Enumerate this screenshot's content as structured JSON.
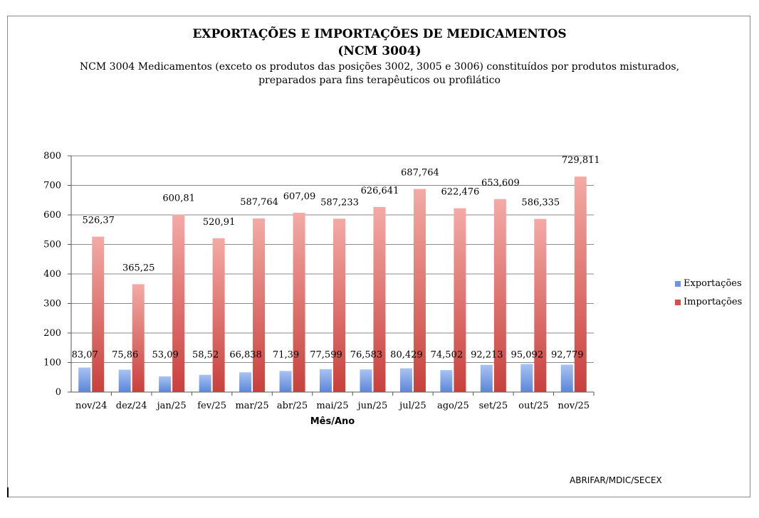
{
  "chart_data": {
    "type": "bar",
    "title": "EXPORTAÇÕES E IMPORTAÇÕES DE MEDICAMENTOS",
    "title_line2": "(NCM 3004)",
    "subtitle": "NCM 3004 Medicamentos (exceto os produtos das posições 3002, 3005 e 3006) constituídos por produtos misturados,",
    "subtitle_line2": "preparados para fins terapêuticos ou profilático",
    "xlabel": "Mês/Ano",
    "ylabel": "",
    "ylim": [
      0,
      800
    ],
    "yticks": [
      "0",
      "100",
      "200",
      "300",
      "400",
      "500",
      "600",
      "700",
      "800"
    ],
    "categories": [
      "nov/24",
      "dez/24",
      "jan/25",
      "fev/25",
      "mar/25",
      "abr/25",
      "mai/25",
      "jun/25",
      "jul/25",
      "ago/25",
      "set/25",
      "out/25",
      "nov/25"
    ],
    "series": [
      {
        "name": "Exportações",
        "color": "#6f95e0",
        "values": [
          83.07,
          75.86,
          53.09,
          58.52,
          66.838,
          71.39,
          77.599,
          76.583,
          80.429,
          74.502,
          92.213,
          95.092,
          92.779
        ],
        "labels": [
          "83,07",
          "75,86",
          "53,09",
          "58,52",
          "66,838",
          "71,39",
          "77,599",
          "76,583",
          "80,429",
          "74,502",
          "92,213",
          "95,092",
          "92,779"
        ]
      },
      {
        "name": "Importações",
        "color": "#d2504b",
        "values": [
          526.37,
          365.25,
          600.81,
          520.91,
          587.764,
          607.09,
          587.233,
          626.641,
          687.764,
          622.476,
          653.609,
          586.335,
          729.811
        ],
        "labels": [
          "526,37",
          "365,25",
          "600,81",
          "520,91",
          "587,764",
          "607,09",
          "587,233",
          "626,641",
          "687,764",
          "622,476",
          "653,609",
          "586,335",
          "729,811"
        ]
      }
    ],
    "legend_position": "right"
  },
  "source": "ABRIFAR/MDIC/SECEX"
}
